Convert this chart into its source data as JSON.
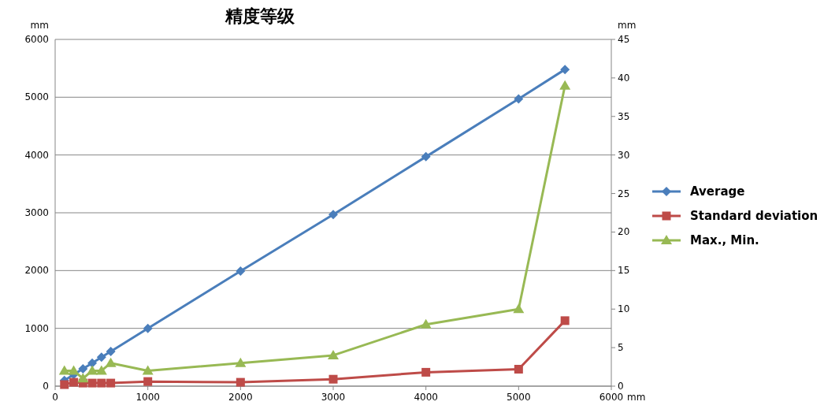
{
  "chart_data": {
    "type": "line",
    "title": "精度等级",
    "xlabel": "mm",
    "ylabel": "mm",
    "y2label": "mm",
    "x": [
      100,
      200,
      300,
      400,
      500,
      600,
      1000,
      2000,
      3000,
      4000,
      5000,
      5500
    ],
    "xlim": [
      0,
      6000
    ],
    "xticks": [
      0,
      1000,
      2000,
      3000,
      4000,
      5000,
      6000
    ],
    "ylim": [
      0,
      6000
    ],
    "yticks": [
      0,
      1000,
      2000,
      3000,
      4000,
      5000,
      6000
    ],
    "y2lim": [
      0,
      45
    ],
    "y2ticks": [
      0,
      5,
      10,
      15,
      20,
      25,
      30,
      35,
      40,
      45
    ],
    "grid": "y",
    "legend": "right",
    "series": [
      {
        "name": "Average",
        "color": "#4a7ebb",
        "marker": "diamond",
        "values": [
          100,
          200,
          300,
          400,
          500,
          600,
          1000,
          1990,
          2970,
          3970,
          4970,
          5480
        ]
      },
      {
        "name": "Standard deviation",
        "color": "#be4b48",
        "marker": "square",
        "axis": "y2",
        "values": [
          0.2,
          0.5,
          0.4,
          0.4,
          0.4,
          0.4,
          0.6,
          0.5,
          0.9,
          1.8,
          2.2,
          8.5
        ]
      },
      {
        "name": "Max., Min.",
        "color": "#98b954",
        "marker": "triangle",
        "axis": "y2",
        "values": [
          2,
          2,
          1,
          2,
          2,
          3,
          2,
          3,
          4,
          8,
          10,
          39
        ]
      }
    ]
  }
}
